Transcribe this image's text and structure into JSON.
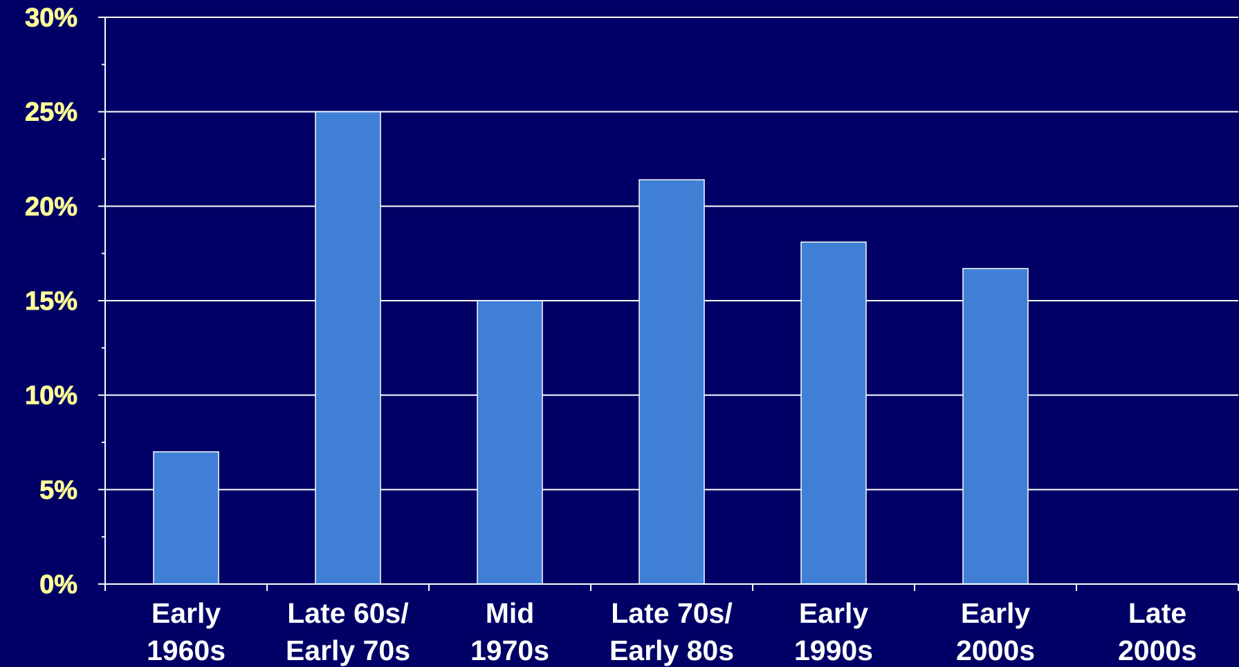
{
  "chart_data": {
    "type": "bar",
    "title": "",
    "xlabel": "",
    "ylabel": "",
    "ylim": [
      0,
      30
    ],
    "yticks": [
      0,
      5,
      10,
      15,
      20,
      25,
      30
    ],
    "ytick_labels": [
      "0%",
      "5%",
      "10%",
      "15%",
      "20%",
      "25%",
      "30%"
    ],
    "grid": "horizontal",
    "legend": "none",
    "categories": [
      [
        "Early",
        "1960s"
      ],
      [
        "Late 60s/",
        "Early 70s"
      ],
      [
        "Mid",
        "1970s"
      ],
      [
        "Late 70s/",
        "Early 80s"
      ],
      [
        "Early",
        "1990s"
      ],
      [
        "Early",
        "2000s"
      ],
      [
        "Late",
        "2000s"
      ]
    ],
    "values": [
      7.0,
      25.0,
      15.0,
      21.4,
      18.1,
      16.7,
      null
    ],
    "colors": {
      "background": "#000066",
      "bar": "#3f7fd6",
      "bar_edge": "#ffffff",
      "grid": "#ffffff",
      "axis": "#ffffff",
      "ytick_text": "#ffff99",
      "xtick_text": "#ffffff"
    }
  }
}
